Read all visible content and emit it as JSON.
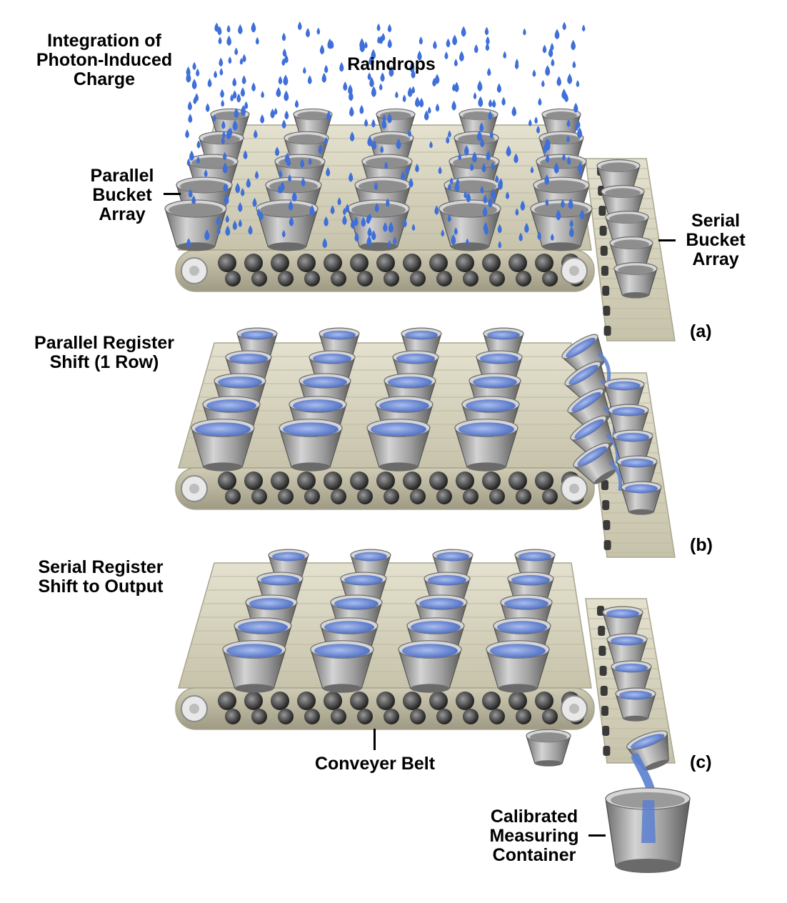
{
  "labels": {
    "integration": [
      "Integration of",
      "Photon-Induced",
      "Charge"
    ],
    "raindrops": "Raindrops",
    "parallel_bucket_array": [
      "Parallel",
      "Bucket",
      "Array"
    ],
    "serial_bucket_array": [
      "Serial",
      "Bucket",
      "Array"
    ],
    "parallel_register_shift": [
      "Parallel Register",
      "Shift (1 Row)"
    ],
    "serial_register_shift": [
      "Serial Register",
      "Shift to Output"
    ],
    "conveyer_belt": "Conveyer Belt",
    "calibrated_container": [
      "Calibrated",
      "Measuring",
      "Container"
    ]
  },
  "panels": {
    "a": "(a)",
    "b": "(b)",
    "c": "(c)"
  },
  "colors": {
    "belt": "#d9d6c3",
    "belt_edge": "#a8a58f",
    "roller": "#3a3a3a",
    "bucket": "#9a9a9a",
    "bucket_rim": "#d6d6d6",
    "water": "#5a7fd0",
    "drop": "#3f6fd8",
    "text": "#000000"
  },
  "icons": {
    "bucket": "bucket-icon",
    "raindrop": "raindrop-icon",
    "roller": "roller-icon"
  }
}
